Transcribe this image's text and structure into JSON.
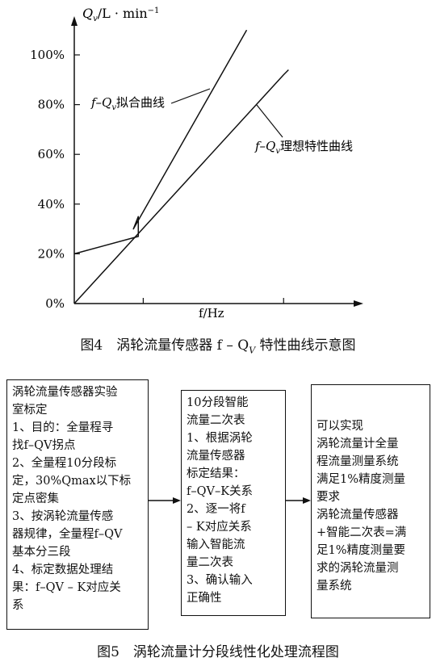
{
  "figure4": {
    "caption": "图4　涡轮流量传感器 f – Q",
    "caption_sub": "V",
    "caption_tail": " 特性曲线示意图",
    "y_axis_label": "Q",
    "y_axis_label_sub": "v",
    "y_axis_unit": "/L · min",
    "y_axis_unit_sup": "−1",
    "x_axis_label": "f/Hz",
    "annotation_fit": "f–Q",
    "annotation_fit_sub": "v",
    "annotation_fit_tail": "拟合曲线",
    "annotation_ideal": "f–Q",
    "annotation_ideal_sub": "v",
    "annotation_ideal_tail": "理想特性曲线"
  },
  "chart_data": {
    "type": "line",
    "xlabel": "f/Hz",
    "ylabel": "Qv/L · min−1",
    "y_ticks": [
      "0%",
      "20%",
      "40%",
      "60%",
      "80%",
      "100%"
    ],
    "ylim": [
      0,
      100
    ],
    "x_ticks_unlabeled": [
      28,
      85
    ],
    "xlim": [
      0,
      115
    ],
    "series": [
      {
        "name": "f–Qv拟合曲线",
        "x": [
          0,
          26,
          26,
          24,
          70
        ],
        "y": [
          20,
          27,
          35,
          30,
          110
        ]
      },
      {
        "name": "f–Qv理想特性曲线",
        "x": [
          0,
          85,
          87
        ],
        "y": [
          0,
          92,
          94
        ]
      }
    ],
    "grid": false
  },
  "figure5": {
    "caption": "图5　涡轮流量计分段线性化处理流程图",
    "box1_lines": [
      "涡轮流量传感器实验",
      "室标定",
      "1、目的：全量程寻",
      "找f–QV拐点",
      "2、全量程10分段标",
      "定，30%Qmax以下标",
      "定点密集",
      "3、按涡轮流量传感",
      "器规律，全量程f–QV",
      "基本分三段",
      "4、标定数据处理结",
      "果：f–QV – K对应关",
      "系"
    ],
    "box2_lines": [
      "10分段智能",
      "流量二次表",
      "1、根据涡轮",
      "流量传感器",
      "标定结果：",
      "f–QV–K关系",
      "2、逐一将f",
      "– K对应关系",
      "输入智能流",
      "量二次表",
      "3、确认输入",
      "正确性"
    ],
    "box3_lines": [
      "可以实现",
      "涡轮流量计全量",
      "程流量测量系统",
      "满足1%精度测量",
      "要求",
      "涡轮流量传感器",
      "+智能二次表=满",
      "足1%精度测量要",
      "求的涡轮流量测",
      "量系统"
    ]
  }
}
